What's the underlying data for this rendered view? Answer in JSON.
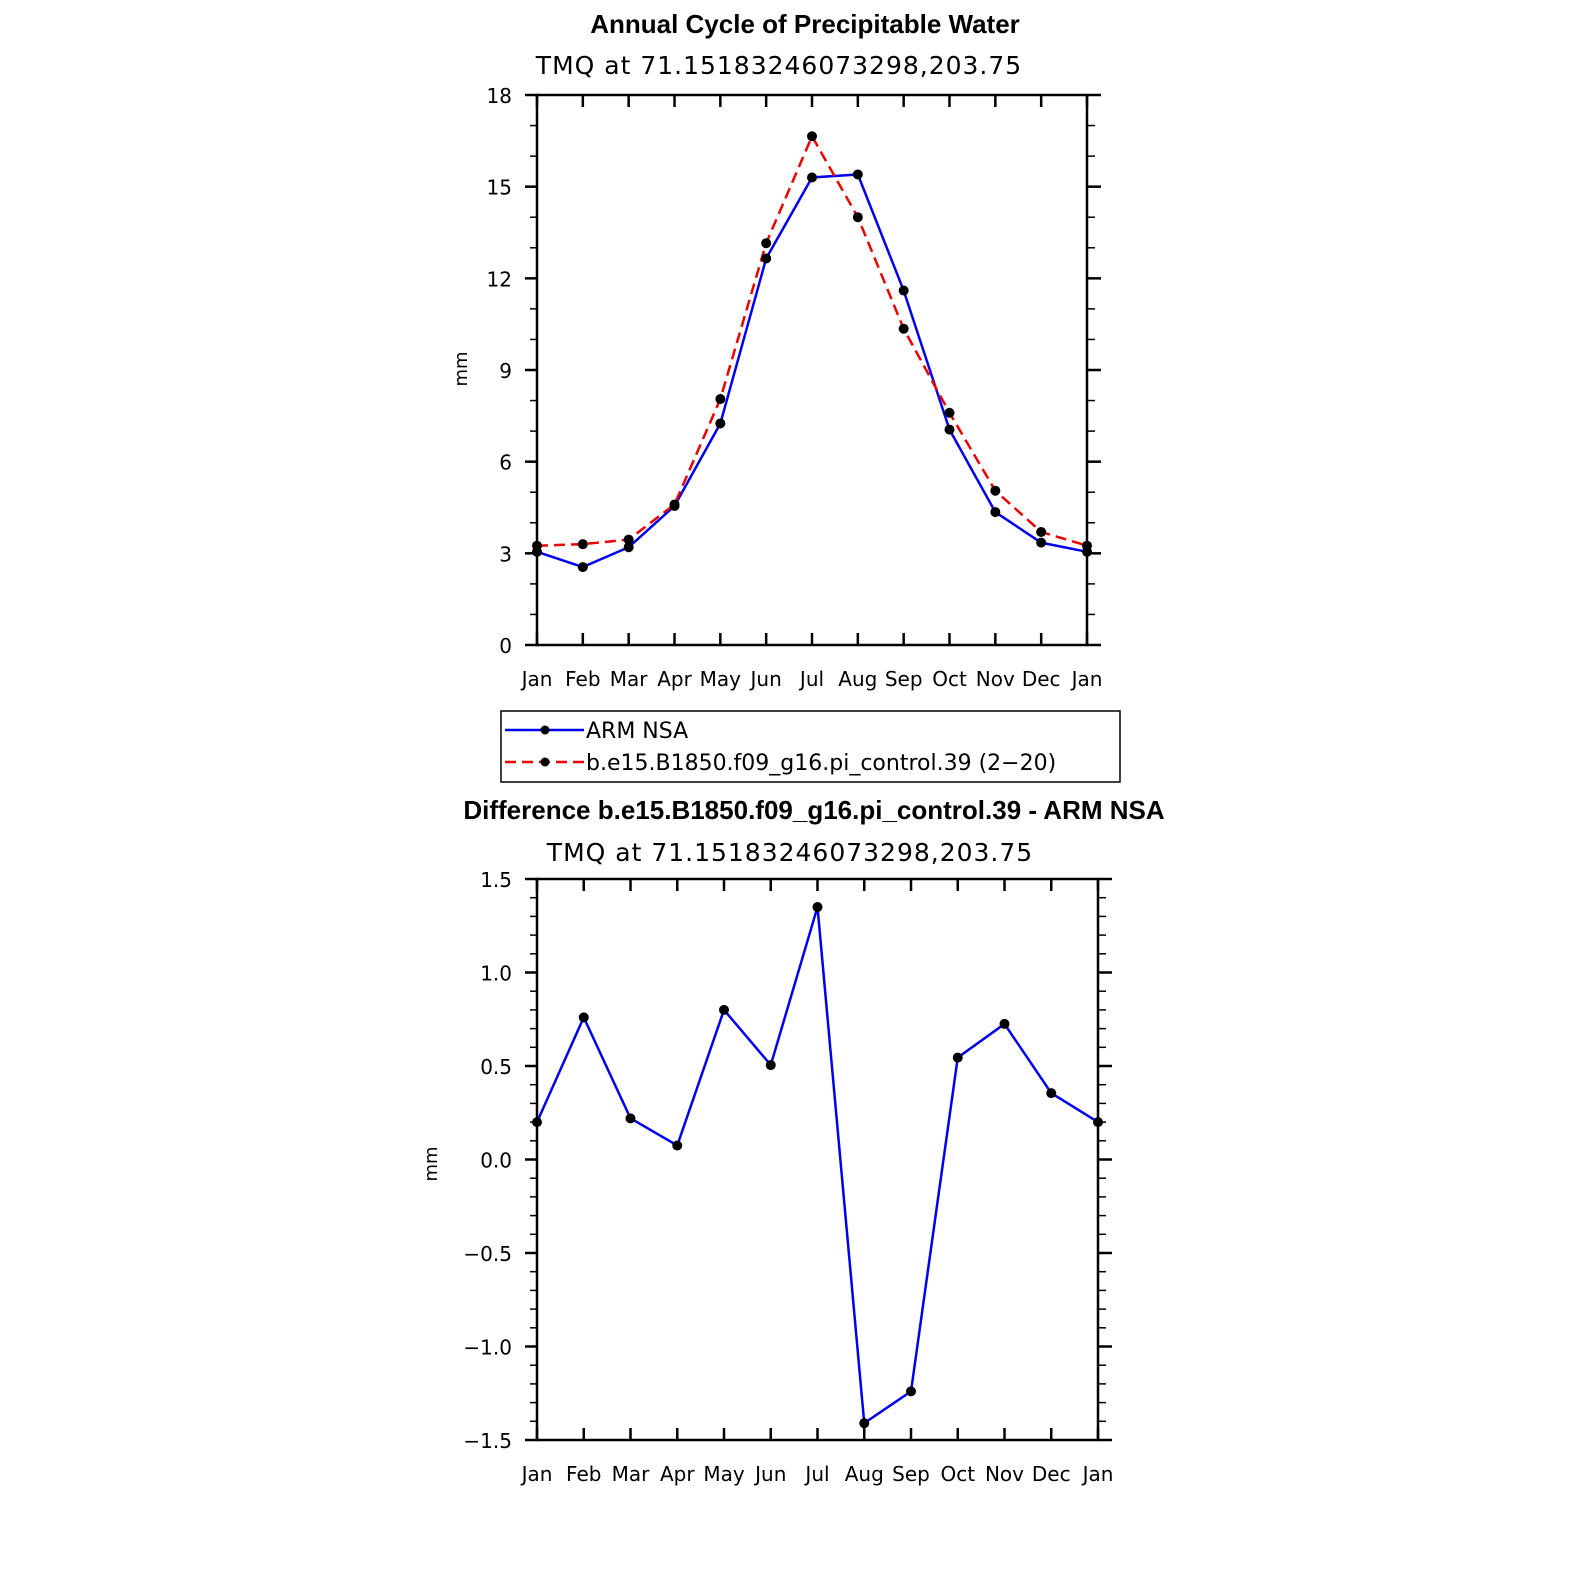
{
  "chart_data": [
    {
      "type": "line",
      "title": "Annual Cycle of Precipitable Water",
      "subtitle": "TMQ at 71.15183246073298,203.75",
      "ylabel": "mm",
      "xlabel": "",
      "categories": [
        "Jan",
        "Feb",
        "Mar",
        "Apr",
        "May",
        "Jun",
        "Jul",
        "Aug",
        "Sep",
        "Oct",
        "Nov",
        "Dec",
        "Jan"
      ],
      "ylim": [
        0,
        18
      ],
      "yticks": [
        "0",
        "3",
        "6",
        "9",
        "12",
        "15",
        "18"
      ],
      "series": [
        {
          "name": "ARM NSA",
          "color": "#0000ee",
          "dash": "solid",
          "values": [
            3.05,
            2.55,
            3.2,
            4.55,
            7.25,
            12.65,
            15.3,
            15.4,
            11.6,
            7.05,
            4.35,
            3.35,
            3.05
          ]
        },
        {
          "name": "b.e15.B1850.f09_g16.pi_control.39 (2−20)",
          "color": "#ee0000",
          "dash": "dashed",
          "values": [
            3.25,
            3.3,
            3.45,
            4.6,
            8.05,
            13.15,
            16.65,
            14.0,
            10.35,
            7.6,
            5.05,
            3.7,
            3.25
          ]
        }
      ]
    },
    {
      "type": "line",
      "title": "Difference b.e15.B1850.f09_g16.pi_control.39 - ARM NSA",
      "subtitle": "TMQ at 71.15183246073298,203.75",
      "ylabel": "mm",
      "xlabel": "",
      "categories": [
        "Jan",
        "Feb",
        "Mar",
        "Apr",
        "May",
        "Jun",
        "Jul",
        "Aug",
        "Sep",
        "Oct",
        "Nov",
        "Dec",
        "Jan"
      ],
      "ylim": [
        -1.5,
        1.5
      ],
      "yticks": [
        "−1.5",
        "−1.0",
        "−0.5",
        "0.0",
        "0.5",
        "1.0",
        "1.5"
      ],
      "series": [
        {
          "color": "#0000ee",
          "dash": "solid",
          "values": [
            0.2,
            0.76,
            0.22,
            0.075,
            0.8,
            0.505,
            1.35,
            -1.41,
            -1.24,
            0.545,
            0.725,
            0.355,
            0.2
          ]
        }
      ]
    }
  ]
}
